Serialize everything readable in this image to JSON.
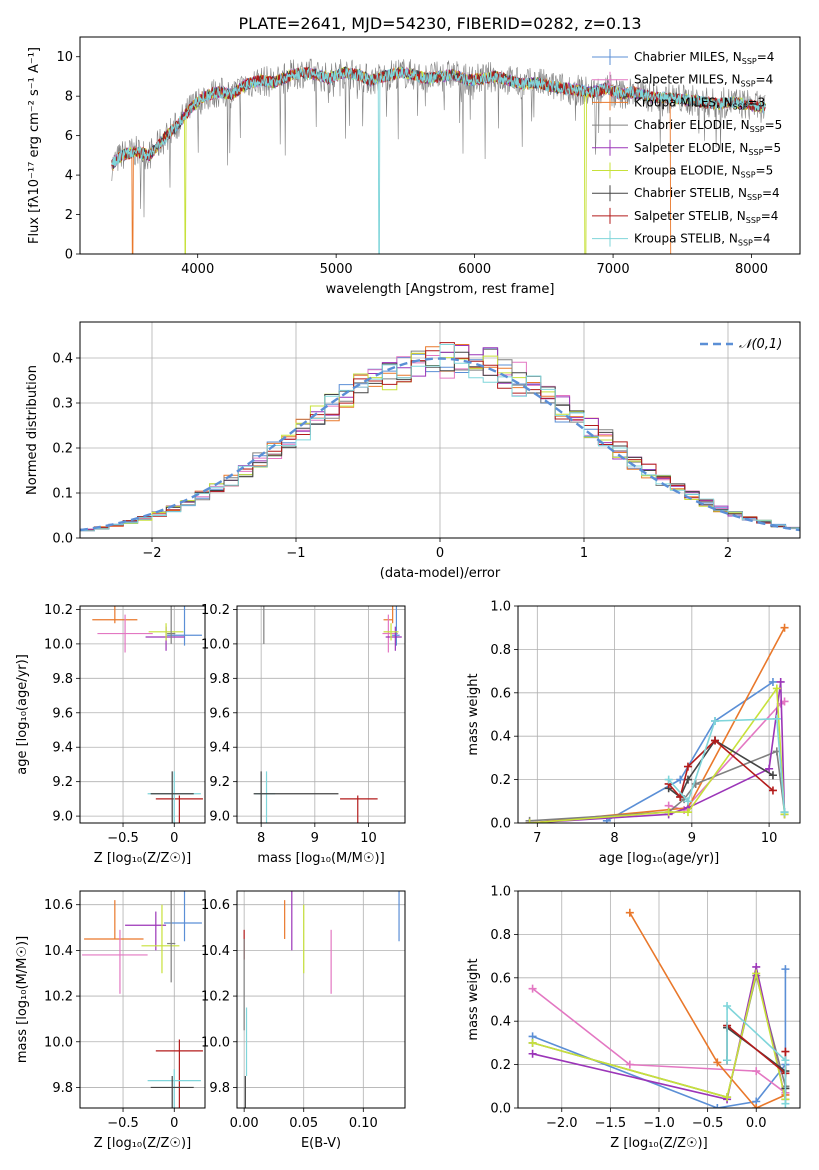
{
  "title": "PLATE=2641, MJD=54230, FIBERID=0282, z=0.13",
  "colors": {
    "Chabrier MILES": "#5b8fd6",
    "Salpeter MILES": "#e377c2",
    "Kroupa MILES": "#e9782b",
    "Chabrier ELODIE": "#808080",
    "Salpeter ELODIE": "#9b35b8",
    "Kroupa ELODIE": "#c7e13a",
    "Chabrier STELIB": "#444444",
    "Salpeter STELIB": "#b31b1b",
    "Kroupa STELIB": "#7fd5da",
    "gauss": "#5b8fd6",
    "grid": "#b0b0b0"
  },
  "chart_data": [
    {
      "id": "spectrum",
      "type": "line",
      "xlabel": "wavelength [Angstrom, rest frame]",
      "ylabel": "Flux [fλ10⁻¹⁷ erg cm⁻² s⁻¹ A⁻¹]",
      "xlim": [
        3150,
        8350
      ],
      "ylim": [
        0,
        11
      ],
      "xticks": [
        4000,
        5000,
        6000,
        7000,
        8000
      ],
      "yticks": [
        0,
        2,
        4,
        6,
        8,
        10
      ],
      "grid": false,
      "legend_position": "top-right",
      "legend": [
        "Chabrier MILES, N_SSP=4",
        "Salpeter MILES, N_SSP=4",
        "Kroupa MILES, N_SSP=3",
        "Chabrier ELODIE, N_SSP=5",
        "Salpeter ELODIE, N_SSP=5",
        "Kroupa ELODIE, N_SSP=5",
        "Chabrier STELIB, N_SSP=4",
        "Salpeter STELIB, N_SSP=4",
        "Kroupa STELIB, N_SSP=4"
      ],
      "data_x": [
        3380,
        3450,
        3550,
        3650,
        3750,
        3850,
        3950,
        4050,
        4150,
        4250,
        4350,
        4450,
        4550,
        4650,
        4750,
        4850,
        4950,
        5050,
        5150,
        5250,
        5350,
        5450,
        5550,
        5650,
        5750,
        5850,
        5950,
        6050,
        6150,
        6250,
        6350,
        6450,
        6550,
        6650,
        6750,
        6850,
        6950,
        7050,
        7150,
        7250,
        7350,
        7450,
        7550,
        7650,
        7750,
        7850,
        7950,
        8100
      ],
      "data_y": [
        4.5,
        5.0,
        5.2,
        5.0,
        5.8,
        6.5,
        7.4,
        8.0,
        8.2,
        8.1,
        8.6,
        8.8,
        8.7,
        9.0,
        9.2,
        9.1,
        8.9,
        9.2,
        9.1,
        8.8,
        9.0,
        9.2,
        9.1,
        8.9,
        9.0,
        9.1,
        8.8,
        8.9,
        9.0,
        8.8,
        8.6,
        8.7,
        8.5,
        8.4,
        8.3,
        8.2,
        8.4,
        8.1,
        8.2,
        8.0,
        7.9,
        7.9,
        7.8,
        7.7,
        7.6,
        7.7,
        7.6,
        7.4
      ],
      "dips": [
        {
          "x": 3530,
          "series": "Kroupa MILES"
        },
        {
          "x": 3910,
          "series": "Kroupa ELODIE"
        },
        {
          "x": 5310,
          "series": "Kroupa STELIB"
        },
        {
          "x": 6800,
          "series": "Kroupa ELODIE"
        },
        {
          "x": 7420,
          "series": "Kroupa MILES"
        }
      ]
    },
    {
      "id": "residuals",
      "type": "bar",
      "xlabel": "(data-model)/error",
      "ylabel": "Normed distribution",
      "xlim": [
        -2.5,
        2.5
      ],
      "ylim": [
        0,
        0.48
      ],
      "xticks": [
        -2,
        -1,
        0,
        1,
        2
      ],
      "yticks": [
        0.0,
        0.1,
        0.2,
        0.3,
        0.4
      ],
      "grid": true,
      "legend_position": "top-right",
      "gauss_label": "𝒩(0,1)",
      "bin_width": 0.1
    },
    {
      "id": "age_vs_Z",
      "type": "scatter",
      "xlabel": "Z [log₁₀(Z/Z☉)]",
      "ylabel": "age  [log₁₀(age/yr)]",
      "xlim": [
        -0.92,
        0.3
      ],
      "ylim": [
        8.96,
        10.22
      ],
      "xticks": [
        -0.5,
        0.0
      ],
      "yticks": [
        9.0,
        9.2,
        9.4,
        9.6,
        9.8,
        10.0,
        10.2
      ],
      "grid": true,
      "points": [
        {
          "s": "Kroupa MILES",
          "x": -0.58,
          "y": 10.14,
          "xe": [
            0.22,
            0.22
          ],
          "ye": [
            0.2,
            0.02
          ]
        },
        {
          "s": "Salpeter MILES",
          "x": -0.48,
          "y": 10.06,
          "xe": [
            0.27,
            0.27
          ],
          "ye": [
            0.11,
            0.11
          ]
        },
        {
          "s": "Chabrier MILES",
          "x": 0.1,
          "y": 10.05,
          "xe": [
            0.17,
            0.17
          ],
          "ye": [
            0.25,
            0.06
          ]
        },
        {
          "s": "Salpeter ELODIE",
          "x": -0.08,
          "y": 10.04,
          "xe": [
            0.2,
            0.18
          ],
          "ye": [
            0.06,
            0.08
          ]
        },
        {
          "s": "Kroupa ELODIE",
          "x": -0.08,
          "y": 10.07,
          "xe": [
            0.17,
            0.17
          ],
          "ye": [
            0.05,
            0.05
          ]
        },
        {
          "s": "Chabrier ELODIE",
          "x": -0.03,
          "y": 10.06,
          "xe": [
            0.04,
            0.04
          ],
          "ye": [
            1.06,
            0.06
          ]
        },
        {
          "s": "Salpeter STELIB",
          "x": 0.05,
          "y": 9.1,
          "xe": [
            0.23,
            0.23
          ],
          "ye": [
            0.02,
            0.98
          ]
        },
        {
          "s": "Kroupa STELIB",
          "x": 0.0,
          "y": 9.13,
          "xe": [
            0.26,
            0.26
          ],
          "ye": [
            0.13,
            0.95
          ]
        },
        {
          "s": "Chabrier STELIB",
          "x": -0.02,
          "y": 9.13,
          "xe": [
            0.21,
            0.21
          ],
          "ye": [
            0.13,
            0.95
          ]
        }
      ]
    },
    {
      "id": "age_vs_mass",
      "type": "scatter",
      "xlabel": "mass [log₁₀(M/M☉)]",
      "ylabel": "",
      "xlim": [
        7.55,
        10.68
      ],
      "ylim": [
        8.96,
        10.22
      ],
      "xticks": [
        8,
        9,
        10
      ],
      "yticks": [
        9.0,
        9.2,
        9.4,
        9.6,
        9.8,
        10.0,
        10.2
      ],
      "grid": true,
      "points": [
        {
          "s": "Kroupa MILES",
          "x": 10.45,
          "y": 10.14,
          "xe": [
            0.17,
            0.0
          ],
          "ye": [
            0.2,
            0.02
          ]
        },
        {
          "s": "Salpeter MILES",
          "x": 10.37,
          "y": 10.06,
          "xe": [
            0.11,
            0.18
          ],
          "ye": [
            0.11,
            0.11
          ]
        },
        {
          "s": "Chabrier MILES",
          "x": 10.52,
          "y": 10.05,
          "xe": [
            0.08,
            0.06
          ],
          "ye": [
            0.25,
            0.06
          ]
        },
        {
          "s": "Salpeter ELODIE",
          "x": 10.5,
          "y": 10.04,
          "xe": [
            0.18,
            0.12
          ],
          "ye": [
            0.06,
            0.08
          ]
        },
        {
          "s": "Kroupa ELODIE",
          "x": 10.42,
          "y": 10.07,
          "xe": [
            0.14,
            0.14
          ],
          "ye": [
            0.05,
            0.05
          ]
        },
        {
          "s": "Chabrier ELODIE",
          "x": 8.05,
          "y": 10.06,
          "xe": [
            0.0,
            0.0
          ],
          "ye": [
            1.06,
            0.06
          ]
        },
        {
          "s": "Salpeter STELIB",
          "x": 9.8,
          "y": 9.1,
          "xe": [
            0.33,
            0.37
          ],
          "ye": [
            0.02,
            0.98
          ]
        },
        {
          "s": "Kroupa STELIB",
          "x": 8.1,
          "y": 9.13,
          "xe": [
            0.22,
            0.16
          ],
          "ye": [
            0.13,
            0.95
          ]
        },
        {
          "s": "Chabrier STELIB",
          "x": 8.0,
          "y": 9.13,
          "xe": [
            0.14,
            1.44
          ],
          "ye": [
            0.13,
            0.95
          ]
        }
      ]
    },
    {
      "id": "weight_vs_age",
      "type": "line",
      "xlabel": "age  [log₁₀(age/yr)]",
      "ylabel": "mass weight",
      "xlim": [
        6.75,
        10.4
      ],
      "ylim": [
        0,
        1.0
      ],
      "xticks": [
        7,
        8,
        9,
        10
      ],
      "yticks": [
        0.0,
        0.2,
        0.4,
        0.6,
        0.8,
        1.0
      ],
      "grid": true,
      "series": [
        {
          "s": "Chabrier MILES",
          "x": [
            7.9,
            8.85,
            9.3,
            10.05
          ],
          "y": [
            0.01,
            0.2,
            0.47,
            0.65
          ]
        },
        {
          "s": "Salpeter MILES",
          "x": [
            8.7,
            8.9,
            10.15,
            10.2
          ],
          "y": [
            0.08,
            0.06,
            0.55,
            0.56
          ]
        },
        {
          "s": "Kroupa MILES",
          "x": [
            6.9,
            8.95,
            10.2
          ],
          "y": [
            0.0,
            0.07,
            0.9
          ]
        },
        {
          "s": "Chabrier ELODIE",
          "x": [
            6.9,
            8.7,
            8.9,
            9.05,
            10.1,
            10.2
          ],
          "y": [
            0.01,
            0.05,
            0.11,
            0.18,
            0.33,
            0.05
          ]
        },
        {
          "s": "Salpeter ELODIE",
          "x": [
            6.9,
            8.7,
            8.95,
            10.0,
            10.15,
            10.2
          ],
          "y": [
            0.0,
            0.04,
            0.07,
            0.25,
            0.65,
            0.04
          ]
        },
        {
          "s": "Kroupa ELODIE",
          "x": [
            6.9,
            8.7,
            8.95,
            10.1,
            10.2
          ],
          "y": [
            0.0,
            0.05,
            0.05,
            0.62,
            0.04
          ]
        },
        {
          "s": "Chabrier STELIB",
          "x": [
            8.7,
            8.85,
            8.95,
            9.3,
            10.05
          ],
          "y": [
            0.16,
            0.12,
            0.2,
            0.38,
            0.22
          ]
        },
        {
          "s": "Salpeter STELIB",
          "x": [
            8.7,
            8.85,
            8.95,
            9.3,
            10.05
          ],
          "y": [
            0.18,
            0.12,
            0.26,
            0.38,
            0.15
          ]
        },
        {
          "s": "Kroupa STELIB",
          "x": [
            8.7,
            8.95,
            9.3,
            10.1,
            10.2
          ],
          "y": [
            0.2,
            0.1,
            0.47,
            0.48,
            0.05
          ]
        }
      ]
    },
    {
      "id": "mass_vs_Z",
      "type": "scatter",
      "xlabel": "Z [log₁₀(Z/Z☉)]",
      "ylabel": "mass [log₁₀(M/M☉)]",
      "xlim": [
        -0.92,
        0.3
      ],
      "ylim": [
        9.71,
        10.66
      ],
      "xticks": [
        -0.5,
        0.0
      ],
      "yticks": [
        9.8,
        10.0,
        10.2,
        10.4,
        10.6
      ],
      "grid": true,
      "points": [
        {
          "s": "Kroupa MILES",
          "x": -0.58,
          "y": 10.45,
          "xe": [
            0.3,
            0.28
          ],
          "ye": [
            0.17,
            0.0
          ]
        },
        {
          "s": "Salpeter MILES",
          "x": -0.53,
          "y": 10.38,
          "xe": [
            0.37,
            0.27
          ],
          "ye": [
            0.11,
            0.17
          ]
        },
        {
          "s": "Chabrier MILES",
          "x": 0.1,
          "y": 10.52,
          "xe": [
            0.2,
            0.17
          ],
          "ye": [
            0.2,
            0.08
          ]
        },
        {
          "s": "Salpeter ELODIE",
          "x": -0.18,
          "y": 10.51,
          "xe": [
            0.3,
            0.1
          ],
          "ye": [
            0.06,
            0.11
          ]
        },
        {
          "s": "Kroupa ELODIE",
          "x": -0.12,
          "y": 10.42,
          "xe": [
            0.2,
            0.17
          ],
          "ye": [
            0.18,
            0.12
          ]
        },
        {
          "s": "Chabrier ELODIE",
          "x": -0.03,
          "y": 10.43,
          "xe": [
            0.04,
            0.04
          ],
          "ye": [
            0.5,
            0.17
          ]
        },
        {
          "s": "Salpeter STELIB",
          "x": 0.05,
          "y": 9.96,
          "xe": [
            0.23,
            0.23
          ],
          "ye": [
            0.05,
            0.52
          ]
        },
        {
          "s": "Kroupa STELIB",
          "x": 0.0,
          "y": 9.83,
          "xe": [
            0.26,
            0.26
          ],
          "ye": [
            0.05,
            0.5
          ]
        },
        {
          "s": "Chabrier STELIB",
          "x": -0.02,
          "y": 9.8,
          "xe": [
            0.21,
            0.21
          ],
          "ye": [
            0.05,
            0.52
          ]
        }
      ]
    },
    {
      "id": "mass_vs_ebv",
      "type": "scatter",
      "xlabel": "E(B-V)",
      "ylabel": "",
      "xlim": [
        -0.006,
        0.135
      ],
      "ylim": [
        9.71,
        10.66
      ],
      "xticks": [
        0.0,
        0.05,
        0.1
      ],
      "xticklabels": [
        "0.00",
        "0.05",
        "0.10"
      ],
      "yticks": [
        9.8,
        10.0,
        10.2,
        10.4,
        10.6
      ],
      "grid": true,
      "points": [
        {
          "s": "Chabrier MILES",
          "x": 0.13,
          "y": 10.52,
          "ye": [
            0.2,
            0.08
          ]
        },
        {
          "s": "Salpeter MILES",
          "x": 0.073,
          "y": 10.38,
          "ye": [
            0.11,
            0.17
          ]
        },
        {
          "s": "Kroupa MILES",
          "x": 0.034,
          "y": 10.45,
          "ye": [
            0.17,
            0.0
          ]
        },
        {
          "s": "Salpeter ELODIE",
          "x": 0.04,
          "y": 10.51,
          "ye": [
            0.18,
            0.11
          ]
        },
        {
          "s": "Kroupa ELODIE",
          "x": 0.05,
          "y": 10.42,
          "ye": [
            0.18,
            0.12
          ]
        },
        {
          "s": "Salpeter STELIB",
          "x": 0.0,
          "y": 10.43,
          "ye": [
            0.06,
            0.07
          ]
        },
        {
          "s": "Chabrier ELODIE",
          "x": 0.0,
          "y": 10.1,
          "ye": [
            0.35,
            0.05
          ]
        },
        {
          "s": "Kroupa STELIB",
          "x": 0.002,
          "y": 9.95,
          "ye": [
            0.2,
            0.1
          ]
        },
        {
          "s": "Chabrier STELIB",
          "x": 0.001,
          "y": 9.8,
          "ye": [
            0.05,
            0.5
          ]
        }
      ]
    },
    {
      "id": "weight_vs_Z",
      "type": "line",
      "xlabel": "Z [log₁₀(Z/Z☉)]",
      "ylabel": "mass weight",
      "xlim": [
        -2.45,
        0.45
      ],
      "ylim": [
        0,
        1.0
      ],
      "xticks": [
        -2.0,
        -1.5,
        -1.0,
        -0.5,
        0.0
      ],
      "xticklabels": [
        "−2.0",
        "−1.5",
        "−1.0",
        "−0.5",
        "0.0"
      ],
      "yticks": [
        0.0,
        0.2,
        0.4,
        0.6,
        0.8,
        1.0
      ],
      "grid": true,
      "series": [
        {
          "s": "Chabrier MILES",
          "x": [
            -2.3,
            -0.4,
            0.0,
            0.3,
            0.3
          ],
          "y": [
            0.33,
            0.0,
            0.03,
            0.2,
            0.64
          ]
        },
        {
          "s": "Salpeter MILES",
          "x": [
            -2.3,
            -1.3,
            0.0,
            0.3
          ],
          "y": [
            0.55,
            0.2,
            0.17,
            0.07
          ]
        },
        {
          "s": "Kroupa MILES",
          "x": [
            -1.3,
            -0.4,
            0.0,
            0.3
          ],
          "y": [
            0.9,
            0.21,
            0.0,
            0.06
          ]
        },
        {
          "s": "Chabrier ELODIE",
          "x": [
            -2.3,
            -0.3,
            0.0,
            0.3
          ],
          "y": [
            0.3,
            0.05,
            0.61,
            0.1
          ]
        },
        {
          "s": "Salpeter ELODIE",
          "x": [
            -2.3,
            -0.3,
            0.0,
            0.3
          ],
          "y": [
            0.25,
            0.04,
            0.65,
            0.04
          ]
        },
        {
          "s": "Kroupa ELODIE",
          "x": [
            -2.3,
            -0.3,
            0.0,
            0.3
          ],
          "y": [
            0.3,
            0.05,
            0.62,
            0.04
          ]
        },
        {
          "s": "Chabrier STELIB",
          "x": [
            -0.3,
            -0.3,
            0.3,
            0.3
          ],
          "y": [
            0.22,
            0.37,
            0.17,
            0.09
          ]
        },
        {
          "s": "Salpeter STELIB",
          "x": [
            -0.3,
            0.3,
            0.3
          ],
          "y": [
            0.38,
            0.16,
            0.26
          ]
        },
        {
          "s": "Kroupa STELIB",
          "x": [
            -0.3,
            -0.3,
            0.3,
            0.3
          ],
          "y": [
            0.22,
            0.47,
            0.22,
            0.02
          ]
        }
      ]
    }
  ]
}
